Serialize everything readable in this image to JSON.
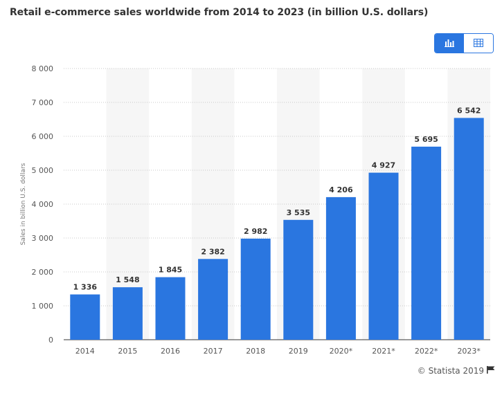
{
  "title": "Retail e-commerce sales worldwide from 2014 to 2023 (in billion U.S. dollars)",
  "view_toggle": {
    "chart_icon": "bar-chart-icon",
    "table_icon": "table-icon",
    "active": "chart"
  },
  "credit": {
    "text": "© Statista 2019",
    "icon": "flag-icon"
  },
  "colors": {
    "bar": "#2a76e0",
    "accent": "#2a76e0",
    "band": "#f6f6f6"
  },
  "chart_data": {
    "type": "bar",
    "title": "Retail e-commerce sales worldwide from 2014 to 2023 (in billion U.S. dollars)",
    "xlabel": "",
    "ylabel": "Sales in billion U.S. dollars",
    "categories": [
      "2014",
      "2015",
      "2016",
      "2017",
      "2018",
      "2019",
      "2020*",
      "2021*",
      "2022*",
      "2023*"
    ],
    "values": [
      1336,
      1548,
      1845,
      2382,
      2982,
      3535,
      4206,
      4927,
      5695,
      6542
    ],
    "value_labels": [
      "1 336",
      "1 548",
      "1 845",
      "2 382",
      "2 982",
      "3 535",
      "4 206",
      "4 927",
      "5 695",
      "6 542"
    ],
    "ylim": [
      0,
      8000
    ],
    "yticks": [
      0,
      1000,
      2000,
      3000,
      4000,
      5000,
      6000,
      7000,
      8000
    ],
    "ytick_labels": [
      "0",
      "1 000",
      "2 000",
      "3 000",
      "4 000",
      "5 000",
      "6 000",
      "7 000",
      "8 000"
    ],
    "grid": true,
    "legend": "none"
  }
}
